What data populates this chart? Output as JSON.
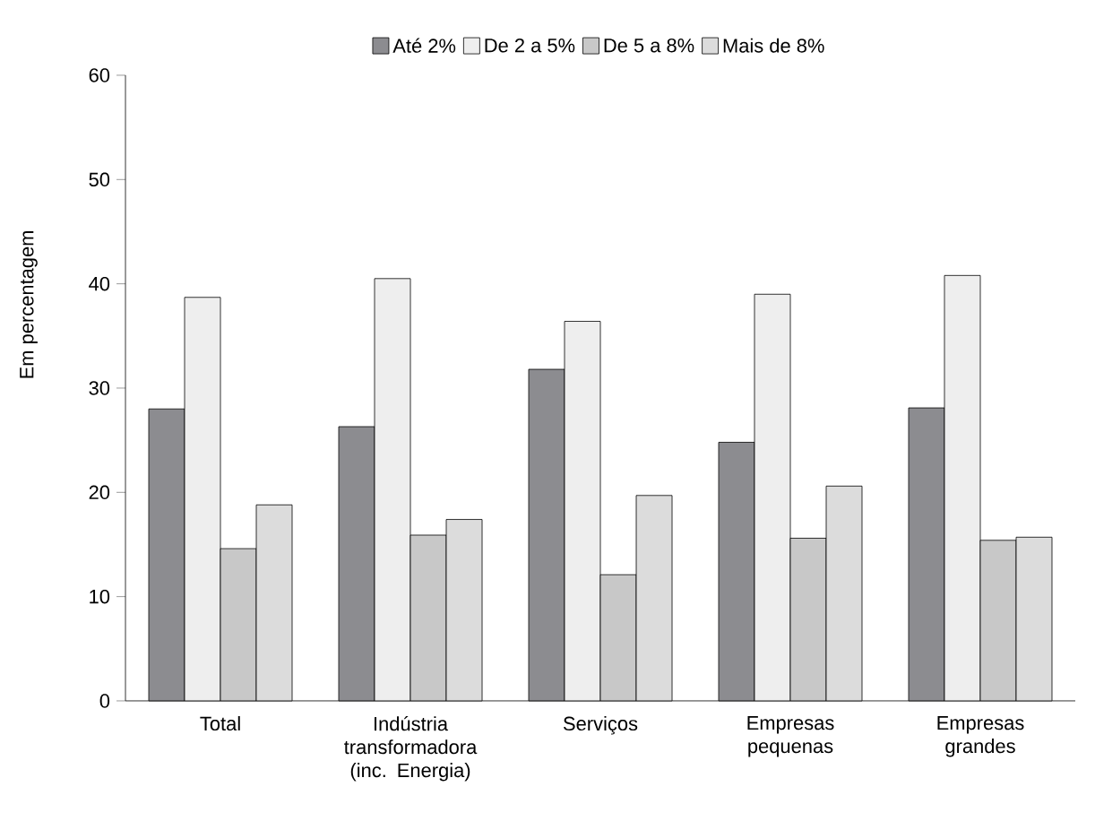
{
  "chart_data": {
    "type": "bar",
    "ylabel": "Em percentagem",
    "categories": [
      "Total",
      "Indústria transformadora (inc. Energia)",
      "Serviços",
      "Empresas pequenas",
      "Empresas grandes"
    ],
    "series": [
      {
        "name": "Até 2%",
        "color": "#8c8c90",
        "values": [
          28.0,
          26.3,
          31.8,
          24.8,
          28.1
        ]
      },
      {
        "name": "De 2 a 5%",
        "color": "#eeeeee",
        "values": [
          38.7,
          40.5,
          36.4,
          39.0,
          40.8
        ]
      },
      {
        "name": "De 5 a 8%",
        "color": "#c8c8c8",
        "values": [
          14.6,
          15.9,
          12.1,
          15.6,
          15.4
        ]
      },
      {
        "name": "Mais de 8%",
        "color": "#dcdcdc",
        "values": [
          18.8,
          17.4,
          19.7,
          20.6,
          15.7
        ]
      }
    ],
    "ylim": [
      0,
      60
    ],
    "yticks": [
      0,
      10,
      20,
      30,
      40,
      50,
      60
    ],
    "grid": false,
    "legend": "top"
  }
}
